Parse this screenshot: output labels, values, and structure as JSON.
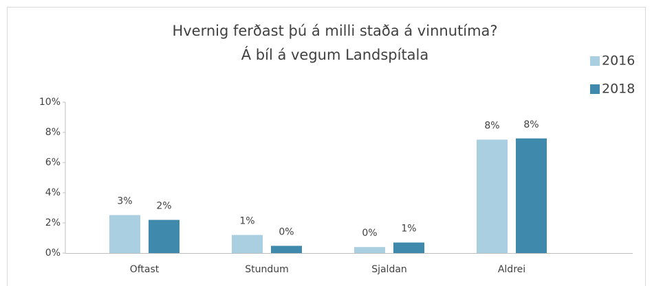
{
  "chart_data": {
    "type": "bar",
    "title": "Hvernig ferðast þú á milli staða á vinnutíma?",
    "subtitle": "Á bíl á vegum Landspítala",
    "categories": [
      "Oftast",
      "Stundum",
      "Sjaldan",
      "Aldrei"
    ],
    "series": [
      {
        "name": "2016",
        "color": "#a9cfe0",
        "values": [
          2.52,
          1.2,
          0.4,
          7.52
        ],
        "value_labels": [
          "3%",
          "1%",
          "0%",
          "8%"
        ]
      },
      {
        "name": "2018",
        "color": "#3f8aac",
        "values": [
          2.2,
          0.48,
          0.7,
          7.6
        ],
        "value_labels": [
          "2%",
          "0%",
          "1%",
          "8%"
        ]
      }
    ],
    "ylim": [
      0,
      10
    ],
    "yticks": [
      {
        "value": 0,
        "label": "0%"
      },
      {
        "value": 2,
        "label": "2%"
      },
      {
        "value": 4,
        "label": "4%"
      },
      {
        "value": 6,
        "label": "6%"
      },
      {
        "value": 8,
        "label": "8%"
      },
      {
        "value": 10,
        "label": "10%"
      }
    ],
    "grid": false,
    "legend": "top-right"
  }
}
